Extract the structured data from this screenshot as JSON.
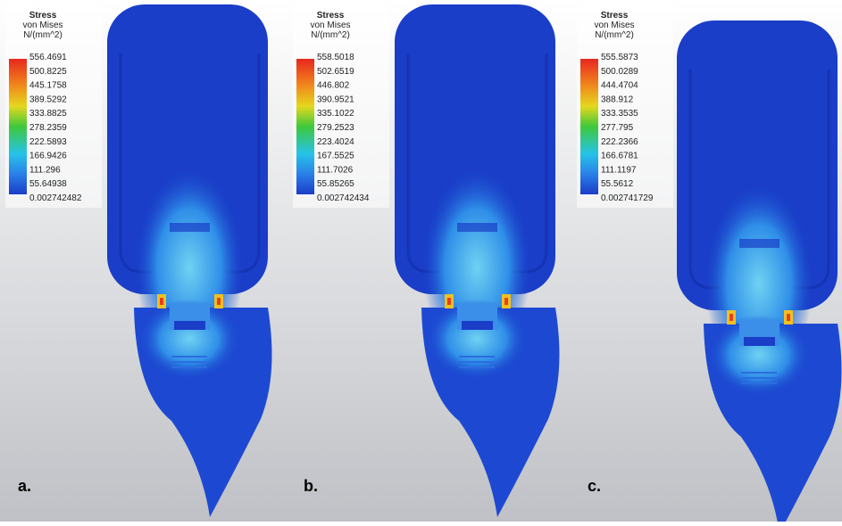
{
  "panels": [
    {
      "label": "a.",
      "legend": {
        "title": [
          "Stress",
          "von Mises",
          "N/(mm^2)"
        ],
        "values": [
          "556.4691",
          "500.8225",
          "445.1758",
          "389.5292",
          "333.8825",
          "278.2359",
          "222.5893",
          "166.9426",
          "111.296",
          "55.64938",
          "0.002742482"
        ]
      }
    },
    {
      "label": "b.",
      "legend": {
        "title": [
          "Stress",
          "von Mises",
          "N/(mm^2)"
        ],
        "values": [
          "558.5018",
          "502.6519",
          "446.802",
          "390.9521",
          "335.1022",
          "279.2523",
          "223.4024",
          "167.5525",
          "111.7026",
          "55.85265",
          "0.002742434"
        ]
      }
    },
    {
      "label": "c.",
      "legend": {
        "title": [
          "Stress",
          "von Mises",
          "N/(mm^2)"
        ],
        "values": [
          "555.5873",
          "500.0289",
          "444.4704",
          "388.912",
          "333.3535",
          "277.795",
          "222.2366",
          "166.6781",
          "111.1197",
          "55.5612",
          "0.002741729"
        ]
      }
    }
  ]
}
